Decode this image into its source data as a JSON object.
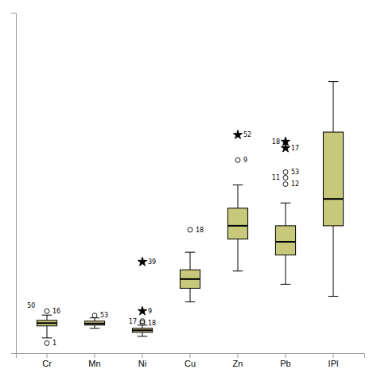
{
  "chart_data": {
    "type": "box",
    "categories": [
      "Cr",
      "Mn",
      "Ni",
      "Cu",
      "Zn",
      "Pb",
      "IPl"
    ],
    "color": "#c8c87a",
    "ylim": [
      0.0,
      8.5
    ],
    "tick_labels": "x",
    "boxes": [
      {
        "whislo": 0.38,
        "q1": 0.68,
        "med": 0.75,
        "q3": 0.82,
        "whishi": 0.95,
        "outliers": [
          {
            "value": 0.25,
            "label": "1",
            "marker": "circle"
          },
          {
            "value": 1.05,
            "label": "16",
            "marker": "circle"
          }
        ],
        "annotations": [
          {
            "text": "50",
            "y": 1.13
          }
        ]
      },
      {
        "whislo": 0.62,
        "q1": 0.7,
        "med": 0.74,
        "q3": 0.8,
        "whishi": 0.88,
        "outliers": [
          {
            "value": 0.94,
            "label": "53",
            "marker": "circle"
          }
        ],
        "annotations": []
      },
      {
        "whislo": 0.42,
        "q1": 0.52,
        "med": 0.57,
        "q3": 0.62,
        "whishi": 0.7,
        "outliers": [
          {
            "value": 0.76,
            "label": "18",
            "marker": "circle"
          },
          {
            "value": 0.8,
            "label": "17",
            "marker": "circle"
          },
          {
            "value": 1.05,
            "label": "9",
            "marker": "star"
          },
          {
            "value": 2.28,
            "label": "39",
            "marker": "star"
          }
        ],
        "annotations": []
      },
      {
        "whislo": 1.28,
        "q1": 1.62,
        "med": 1.85,
        "q3": 2.08,
        "whishi": 2.52,
        "outliers": [
          {
            "value": 3.08,
            "label": "18",
            "marker": "circle"
          }
        ],
        "annotations": []
      },
      {
        "whislo": 2.05,
        "q1": 2.85,
        "med": 3.18,
        "q3": 3.62,
        "whishi": 4.2,
        "outliers": [
          {
            "value": 4.82,
            "label": "9",
            "marker": "circle"
          },
          {
            "value": 5.45,
            "label": "52",
            "marker": "star"
          }
        ],
        "annotations": []
      },
      {
        "whislo": 1.72,
        "q1": 2.45,
        "med": 2.78,
        "q3": 3.18,
        "whishi": 3.75,
        "outliers": [
          {
            "value": 4.22,
            "label": "12",
            "marker": "circle"
          },
          {
            "value": 4.38,
            "label": "11",
            "marker": "circle"
          },
          {
            "value": 4.52,
            "label": "53",
            "marker": "circle"
          },
          {
            "value": 5.12,
            "label": "17",
            "marker": "star"
          },
          {
            "value": 5.28,
            "label": "18",
            "marker": "star"
          }
        ],
        "annotations": []
      },
      {
        "whislo": 1.42,
        "q1": 3.18,
        "med": 3.85,
        "q3": 5.52,
        "whishi": 6.78,
        "outliers": [],
        "annotations": []
      }
    ]
  }
}
